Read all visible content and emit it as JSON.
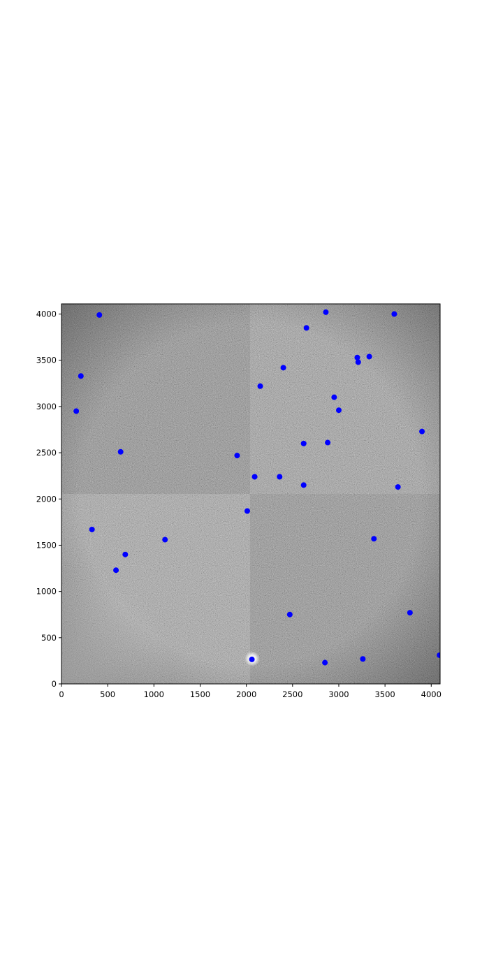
{
  "chart_data": {
    "type": "scatter",
    "title": "",
    "xlabel": "",
    "ylabel": "",
    "xlim": [
      0,
      4096
    ],
    "ylim": [
      0,
      4110
    ],
    "grid": false,
    "background": "grayscale astronomical CCD image with a brighter star halo near x=2060, y=270",
    "x_ticks": [
      0,
      500,
      1000,
      1500,
      2000,
      2500,
      3000,
      3500,
      4000
    ],
    "y_ticks": [
      0,
      500,
      1000,
      1500,
      2000,
      2500,
      3000,
      3500,
      4000
    ],
    "marker_color": "#0000ff",
    "points": [
      {
        "x": 410,
        "y": 3990
      },
      {
        "x": 2860,
        "y": 4020
      },
      {
        "x": 3600,
        "y": 4000
      },
      {
        "x": 2650,
        "y": 3850
      },
      {
        "x": 3330,
        "y": 3540
      },
      {
        "x": 3200,
        "y": 3530
      },
      {
        "x": 3210,
        "y": 3480
      },
      {
        "x": 2400,
        "y": 3420
      },
      {
        "x": 210,
        "y": 3330
      },
      {
        "x": 2150,
        "y": 3220
      },
      {
        "x": 2950,
        "y": 3100
      },
      {
        "x": 160,
        "y": 2950
      },
      {
        "x": 3000,
        "y": 2960
      },
      {
        "x": 3900,
        "y": 2730
      },
      {
        "x": 2620,
        "y": 2600
      },
      {
        "x": 2880,
        "y": 2610
      },
      {
        "x": 640,
        "y": 2510
      },
      {
        "x": 1900,
        "y": 2470
      },
      {
        "x": 2090,
        "y": 2240
      },
      {
        "x": 2360,
        "y": 2240
      },
      {
        "x": 2620,
        "y": 2150
      },
      {
        "x": 3640,
        "y": 2130
      },
      {
        "x": 2010,
        "y": 1870
      },
      {
        "x": 330,
        "y": 1670
      },
      {
        "x": 1120,
        "y": 1560
      },
      {
        "x": 3380,
        "y": 1570
      },
      {
        "x": 690,
        "y": 1400
      },
      {
        "x": 590,
        "y": 1230
      },
      {
        "x": 3770,
        "y": 770
      },
      {
        "x": 2470,
        "y": 750
      },
      {
        "x": 4090,
        "y": 310
      },
      {
        "x": 3260,
        "y": 270
      },
      {
        "x": 2060,
        "y": 265
      },
      {
        "x": 2850,
        "y": 230
      }
    ]
  }
}
